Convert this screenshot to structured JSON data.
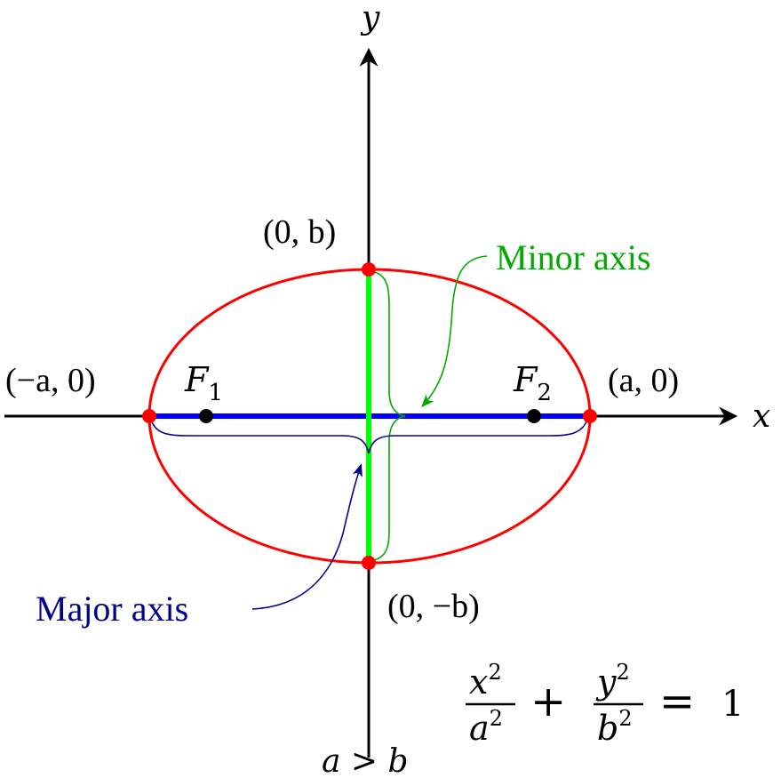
{
  "axes": {
    "x_label": "x",
    "y_label": "y"
  },
  "points": {
    "top": "(0, b)",
    "bottom": "(0, −b)",
    "left": "(−a, 0)",
    "right": "(a, 0)"
  },
  "foci": {
    "f1_main": "F",
    "f1_sub": "1",
    "f2_main": "F",
    "f2_sub": "2"
  },
  "annotations": {
    "minor_axis": "Minor axis",
    "major_axis": "Major axis"
  },
  "equation": {
    "num1": "x",
    "den1": "a",
    "num2": "y",
    "den2": "b",
    "exp": "2",
    "plus": "+",
    "equals": "=",
    "rhs": "1"
  },
  "condition": "a > b",
  "colors": {
    "ellipse": "#ff0000",
    "major_axis": "#0000ff",
    "minor_axis": "#00ff00",
    "minor_label": "#00aa00",
    "major_label": "#00008b",
    "vertex": "#ff0000",
    "focus": "#000000",
    "axis": "#000000"
  }
}
